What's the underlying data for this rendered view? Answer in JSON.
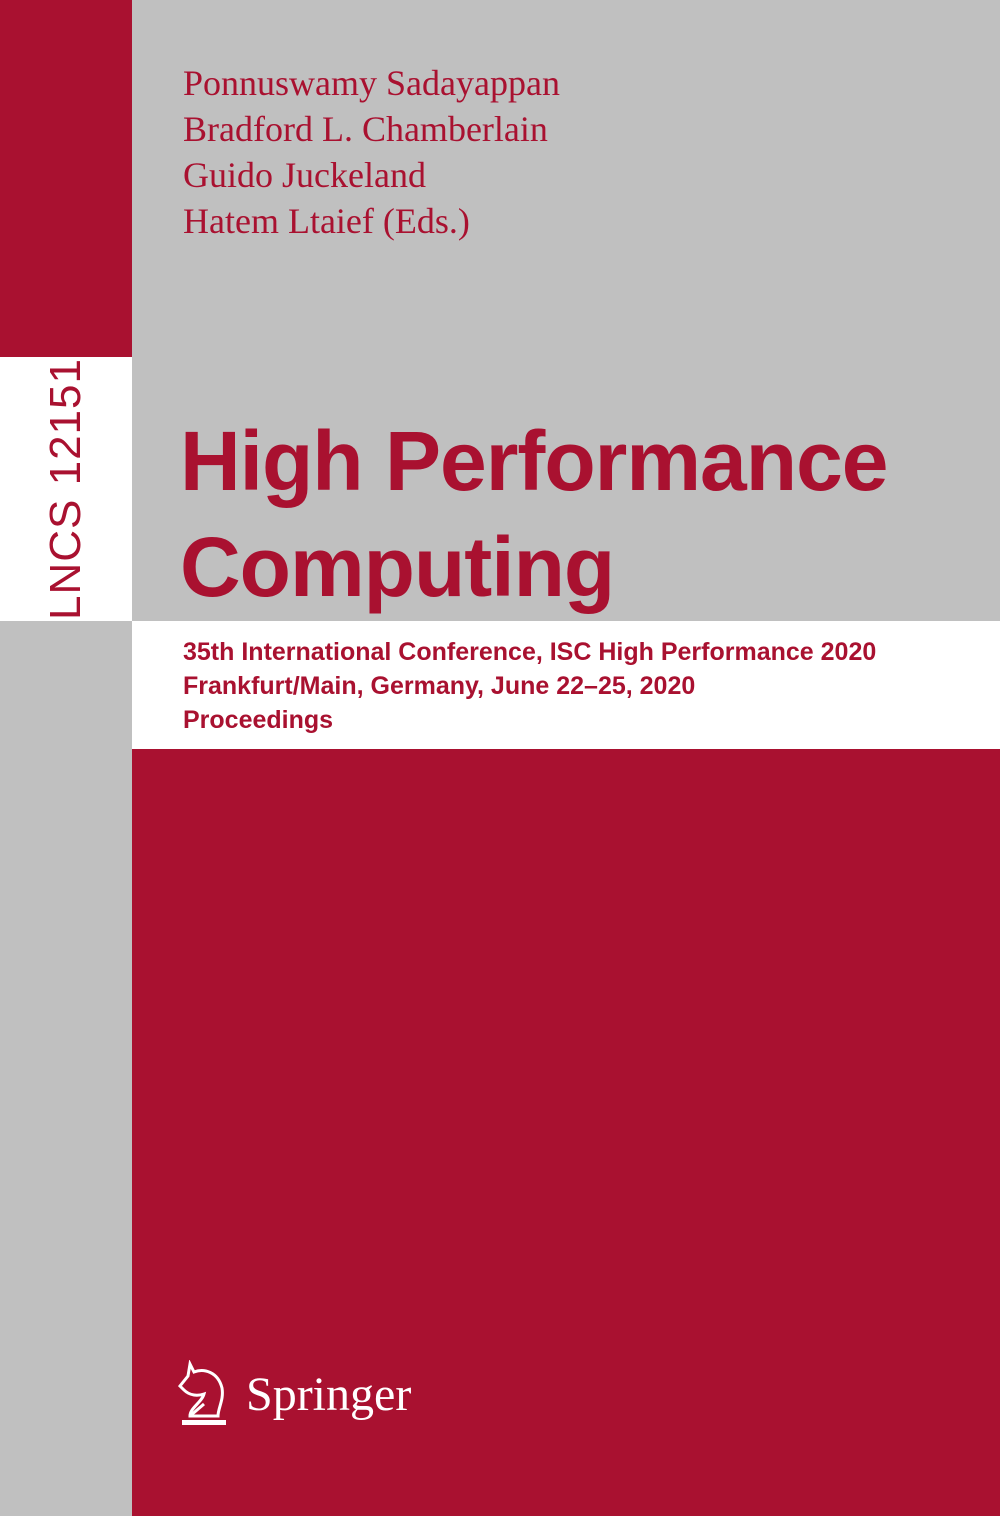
{
  "colors": {
    "brand_red": "#a91130",
    "gray": "#c0c0c0",
    "white": "#ffffff"
  },
  "series_label": "LNCS 12151",
  "editors": [
    "Ponnuswamy Sadayappan",
    "Bradford L. Chamberlain",
    "Guido Juckeland",
    "Hatem Ltaief (Eds.)"
  ],
  "title_lines": [
    "High Performance",
    "Computing"
  ],
  "subtitle_lines": [
    "35th International Conference, ISC High Performance 2020",
    "Frankfurt/Main, Germany, June 22–25, 2020",
    "Proceedings"
  ],
  "publisher": {
    "name": "Springer",
    "icon": "chess-knight-icon"
  }
}
